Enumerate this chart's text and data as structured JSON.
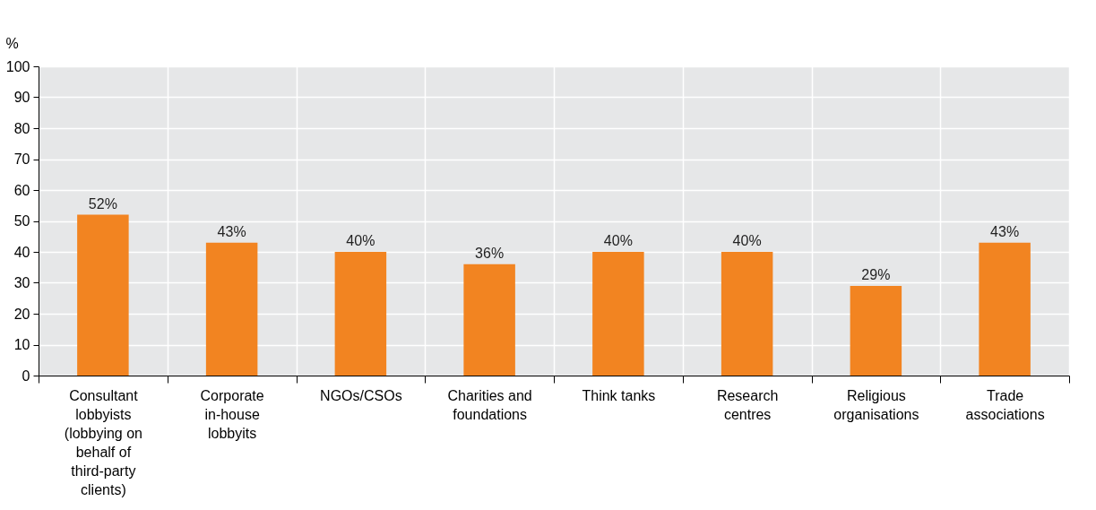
{
  "chart_data": {
    "type": "bar",
    "ylabel": "%",
    "categories": [
      "Consultant lobbyists (lobbying on behalf of third-party clients)",
      "Corporate in-house lobbyits",
      "NGOs/CSOs",
      "Charities and foundations",
      "Think tanks",
      "Research centres",
      "Religious organisations",
      "Trade associations"
    ],
    "values": [
      52,
      43,
      40,
      36,
      40,
      40,
      29,
      43
    ],
    "value_labels": [
      "52%",
      "43%",
      "40%",
      "36%",
      "40%",
      "40%",
      "29%",
      "43%"
    ],
    "color": "#f28421",
    "ylim": [
      0,
      100
    ],
    "yticks": [
      0,
      10,
      20,
      30,
      40,
      50,
      60,
      70,
      80,
      90,
      100
    ],
    "grid": true
  }
}
